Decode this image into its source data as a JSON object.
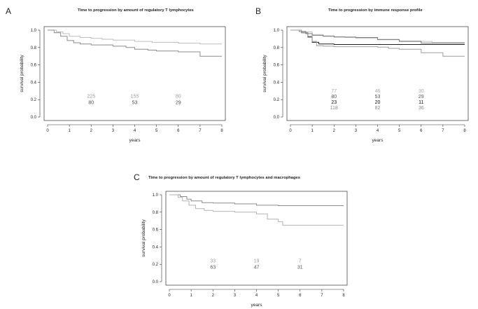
{
  "figure": {
    "panels": [
      {
        "letter": "A",
        "chart_data": {
          "type": "line",
          "step": true,
          "title": "Time to progression by amount of regulatory T lymphocytes",
          "xlabel": "years",
          "ylabel": "survival probability",
          "xlim": [
            0,
            8
          ],
          "ylim": [
            0,
            1
          ],
          "xticks": [
            "0",
            "1",
            "2",
            "3",
            "4",
            "5",
            "6",
            "7",
            "8"
          ],
          "yticks": [
            "0.0",
            "0.2",
            "0.4",
            "0.6",
            "0.8",
            "1.0"
          ],
          "grid": false,
          "series": [
            {
              "color": "#bdbdbd",
              "points": [
                [
                  0,
                  1.0
                ],
                [
                  0.4,
                  0.98
                ],
                [
                  0.7,
                  0.96
                ],
                [
                  1.0,
                  0.93
                ],
                [
                  1.5,
                  0.915
                ],
                [
                  2.0,
                  0.905
                ],
                [
                  2.5,
                  0.895
                ],
                [
                  3.0,
                  0.885
                ],
                [
                  4.0,
                  0.87
                ],
                [
                  4.8,
                  0.86
                ],
                [
                  6.0,
                  0.85
                ],
                [
                  7.0,
                  0.84
                ],
                [
                  8.0,
                  0.84
                ]
              ]
            },
            {
              "color": "#8c8c8c",
              "points": [
                [
                  0,
                  1.0
                ],
                [
                  0.3,
                  0.97
                ],
                [
                  0.6,
                  0.93
                ],
                [
                  0.9,
                  0.88
                ],
                [
                  1.2,
                  0.855
                ],
                [
                  1.5,
                  0.84
                ],
                [
                  2.0,
                  0.83
                ],
                [
                  3.0,
                  0.815
                ],
                [
                  3.6,
                  0.8
                ],
                [
                  4.0,
                  0.78
                ],
                [
                  4.6,
                  0.77
                ],
                [
                  5.0,
                  0.76
                ],
                [
                  6.0,
                  0.75
                ],
                [
                  7.0,
                  0.7
                ],
                [
                  8.0,
                  0.7
                ]
              ]
            }
          ],
          "risk_table": [
            {
              "x": [
                2,
                4,
                6
              ],
              "values": [
                "225",
                "155",
                "80"
              ],
              "color": "#9a9a9a"
            },
            {
              "x": [
                2,
                4,
                6
              ],
              "values": [
                "80",
                "53",
                "29"
              ],
              "color": "#4a4a4a"
            }
          ]
        }
      },
      {
        "letter": "B",
        "chart_data": {
          "type": "line",
          "step": true,
          "title": "Time to progression by immune response profile",
          "xlabel": "years",
          "ylabel": "survival probability",
          "xlim": [
            0,
            8
          ],
          "ylim": [
            0,
            1
          ],
          "xticks": [
            "0",
            "1",
            "2",
            "3",
            "4",
            "5",
            "6",
            "7",
            "8"
          ],
          "yticks": [
            "0.0",
            "0.2",
            "0.4",
            "0.6",
            "0.8",
            "1.0"
          ],
          "grid": false,
          "series": [
            {
              "color": "#c4c4c4",
              "points": [
                [
                  0,
                  1.0
                ],
                [
                  0.5,
                  0.98
                ],
                [
                  1.0,
                  0.95
                ],
                [
                  1.5,
                  0.935
                ],
                [
                  2.0,
                  0.925
                ],
                [
                  2.5,
                  0.915
                ],
                [
                  3.0,
                  0.905
                ],
                [
                  4.0,
                  0.895
                ],
                [
                  5.0,
                  0.875
                ],
                [
                  6.0,
                  0.87
                ],
                [
                  6.5,
                  0.86
                ],
                [
                  8.0,
                  0.86
                ]
              ]
            },
            {
              "color": "#7a7a7a",
              "points": [
                [
                  0,
                  1.0
                ],
                [
                  0.4,
                  0.985
                ],
                [
                  0.7,
                  0.96
                ],
                [
                  1.0,
                  0.94
                ],
                [
                  1.5,
                  0.93
                ],
                [
                  2.0,
                  0.92
                ],
                [
                  3.0,
                  0.915
                ],
                [
                  4.0,
                  0.89
                ],
                [
                  5.0,
                  0.87
                ],
                [
                  6.0,
                  0.85
                ],
                [
                  7.0,
                  0.85
                ],
                [
                  8.0,
                  0.85
                ]
              ]
            },
            {
              "color": "#1f1f1f",
              "points": [
                [
                  0,
                  1.0
                ],
                [
                  0.5,
                  0.97
                ],
                [
                  0.8,
                  0.92
                ],
                [
                  1.0,
                  0.86
                ],
                [
                  1.3,
                  0.84
                ],
                [
                  2.0,
                  0.835
                ],
                [
                  4.0,
                  0.835
                ],
                [
                  6.0,
                  0.835
                ],
                [
                  8.0,
                  0.835
                ]
              ]
            },
            {
              "color": "#9e9e9e",
              "points": [
                [
                  0,
                  1.0
                ],
                [
                  0.5,
                  0.97
                ],
                [
                  0.8,
                  0.93
                ],
                [
                  1.0,
                  0.87
                ],
                [
                  1.2,
                  0.82
                ],
                [
                  1.5,
                  0.815
                ],
                [
                  2.0,
                  0.81
                ],
                [
                  3.0,
                  0.81
                ],
                [
                  4.0,
                  0.805
                ],
                [
                  4.5,
                  0.79
                ],
                [
                  5.0,
                  0.78
                ],
                [
                  6.0,
                  0.74
                ],
                [
                  7.0,
                  0.7
                ],
                [
                  8.0,
                  0.7
                ]
              ]
            }
          ],
          "risk_table": [
            {
              "x": [
                2,
                4,
                6
              ],
              "values": [
                "77",
                "46",
                "30"
              ],
              "color": "#a8a8a8"
            },
            {
              "x": [
                2,
                4,
                6
              ],
              "values": [
                "80",
                "53",
                "29"
              ],
              "color": "#555555"
            },
            {
              "x": [
                2,
                4,
                6
              ],
              "values": [
                "23",
                "20",
                "11"
              ],
              "color": "#111111"
            },
            {
              "x": [
                2,
                4,
                6
              ],
              "values": [
                "118",
                "82",
                "36"
              ],
              "color": "#8a8a8a"
            }
          ]
        }
      },
      {
        "letter": "C",
        "chart_data": {
          "type": "line",
          "step": true,
          "title": "Time to progression by amount of regulatory T lymphocytes and macrophages",
          "xlabel": "years",
          "ylabel": "survival probability",
          "xlim": [
            0,
            8
          ],
          "ylim": [
            0,
            1
          ],
          "xticks": [
            "0",
            "1",
            "2",
            "3",
            "4",
            "5",
            "6",
            "7",
            "8"
          ],
          "yticks": [
            "0.0",
            "0.2",
            "0.4",
            "0.6",
            "0.8",
            "1.0"
          ],
          "grid": false,
          "series": [
            {
              "color": "#8c8c8c",
              "points": [
                [
                  0,
                  1.0
                ],
                [
                  0.5,
                  0.98
                ],
                [
                  0.8,
                  0.95
                ],
                [
                  1.0,
                  0.93
                ],
                [
                  1.5,
                  0.91
                ],
                [
                  2.0,
                  0.905
                ],
                [
                  3.0,
                  0.895
                ],
                [
                  4.0,
                  0.88
                ],
                [
                  5.0,
                  0.875
                ],
                [
                  6.0,
                  0.875
                ],
                [
                  8.0,
                  0.875
                ]
              ]
            },
            {
              "color": "#b3b3b3",
              "points": [
                [
                  0,
                  1.0
                ],
                [
                  0.4,
                  0.97
                ],
                [
                  0.6,
                  0.93
                ],
                [
                  0.9,
                  0.88
                ],
                [
                  1.2,
                  0.84
                ],
                [
                  1.6,
                  0.82
                ],
                [
                  2.0,
                  0.81
                ],
                [
                  3.0,
                  0.8
                ],
                [
                  4.0,
                  0.78
                ],
                [
                  4.5,
                  0.72
                ],
                [
                  5.0,
                  0.69
                ],
                [
                  5.2,
                  0.65
                ],
                [
                  6.0,
                  0.65
                ],
                [
                  8.0,
                  0.65
                ]
              ]
            }
          ],
          "risk_table": [
            {
              "x": [
                2,
                4,
                6
              ],
              "values": [
                "33",
                "19",
                "7"
              ],
              "color": "#9a9a9a"
            },
            {
              "x": [
                2,
                4,
                6
              ],
              "values": [
                "63",
                "47",
                "31"
              ],
              "color": "#555555"
            }
          ]
        }
      }
    ]
  }
}
